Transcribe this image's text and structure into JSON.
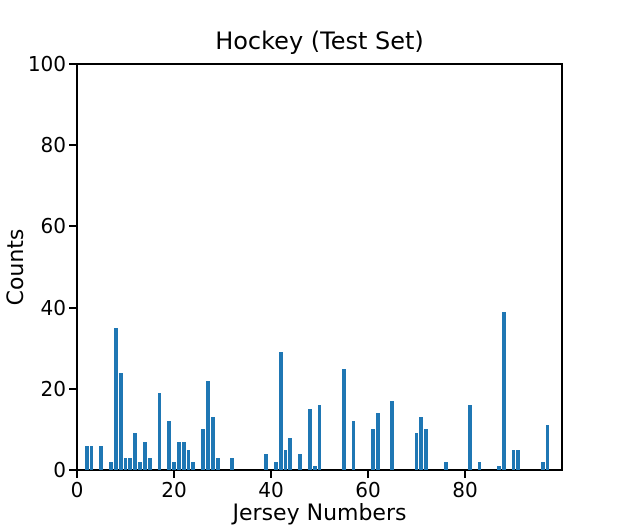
{
  "chart_data": {
    "type": "bar",
    "title": "Hockey (Test Set)",
    "xlabel": "Jersey Numbers",
    "ylabel": "Counts",
    "xlim": [
      0,
      100
    ],
    "ylim": [
      0,
      100
    ],
    "x_ticks": [
      0,
      20,
      40,
      60,
      80
    ],
    "y_ticks": [
      0,
      20,
      40,
      60,
      80,
      100
    ],
    "grid": false,
    "legend": null,
    "bar_width": 0.8,
    "bar_color": "#1f77b4",
    "axis_color": "#000000",
    "background_color": "#ffffff",
    "x": [
      2,
      3,
      5,
      7,
      8,
      9,
      10,
      11,
      12,
      13,
      14,
      15,
      17,
      19,
      20,
      21,
      22,
      23,
      24,
      26,
      27,
      28,
      29,
      32,
      39,
      41,
      42,
      43,
      44,
      46,
      48,
      49,
      50,
      55,
      57,
      61,
      62,
      65,
      70,
      71,
      72,
      76,
      81,
      83,
      87,
      88,
      90,
      91,
      96,
      97
    ],
    "values": [
      6,
      6,
      6,
      2,
      35,
      24,
      3,
      3,
      9,
      2,
      7,
      3,
      19,
      12,
      2,
      7,
      7,
      5,
      2,
      10,
      22,
      13,
      3,
      3,
      4,
      2,
      29,
      5,
      8,
      4,
      15,
      1,
      16,
      25,
      12,
      10,
      14,
      17,
      9,
      13,
      10,
      2,
      16,
      2,
      1,
      39,
      5,
      5,
      2,
      11
    ]
  }
}
